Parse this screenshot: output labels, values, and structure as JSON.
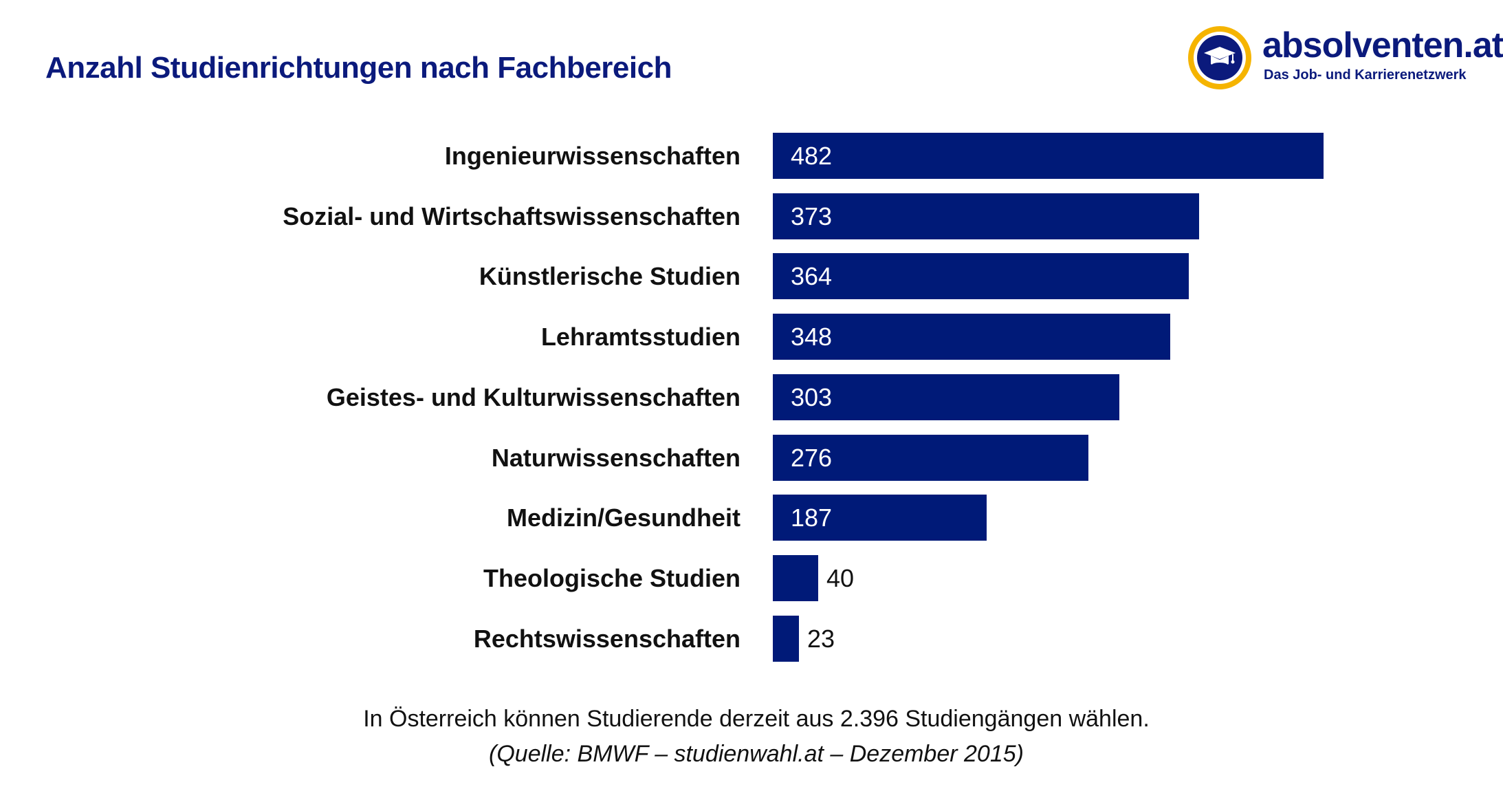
{
  "logo": {
    "brand": "absolventen.at",
    "tagline": "Das Job- und Karrierenetzwerk",
    "icon": "graduation-cap-icon",
    "colors": {
      "ring": "#f5b400",
      "brand": "#0b1a7c"
    }
  },
  "chart_data": {
    "type": "bar",
    "orientation": "horizontal",
    "title": "Anzahl Studienrichtungen nach Fachbereich",
    "xlabel": "",
    "ylabel": "",
    "categories": [
      "Ingenieurwissenschaften",
      "Sozial- und Wirtschaftswissenschaften",
      "Künstlerische Studien",
      "Lehramtsstudien",
      "Geistes- und Kulturwissenschaften",
      "Naturwissenschaften",
      "Medizin/Gesundheit",
      "Theologische Studien",
      "Rechtswissenschaften"
    ],
    "values": [
      482,
      373,
      364,
      348,
      303,
      276,
      187,
      40,
      23
    ],
    "data_labels": [
      "482",
      "373",
      "364",
      "348",
      "303",
      "276",
      "187",
      "40",
      "23"
    ],
    "xlim": [
      0,
      482
    ],
    "grid": false,
    "legend": "none",
    "bar_color": "#001a78"
  },
  "footer": {
    "note": "In Österreich können Studierende derzeit aus 2.396 Studiengängen wählen.",
    "source": "(Quelle: BMWF – studienwahl.at – Dezember 2015)"
  }
}
